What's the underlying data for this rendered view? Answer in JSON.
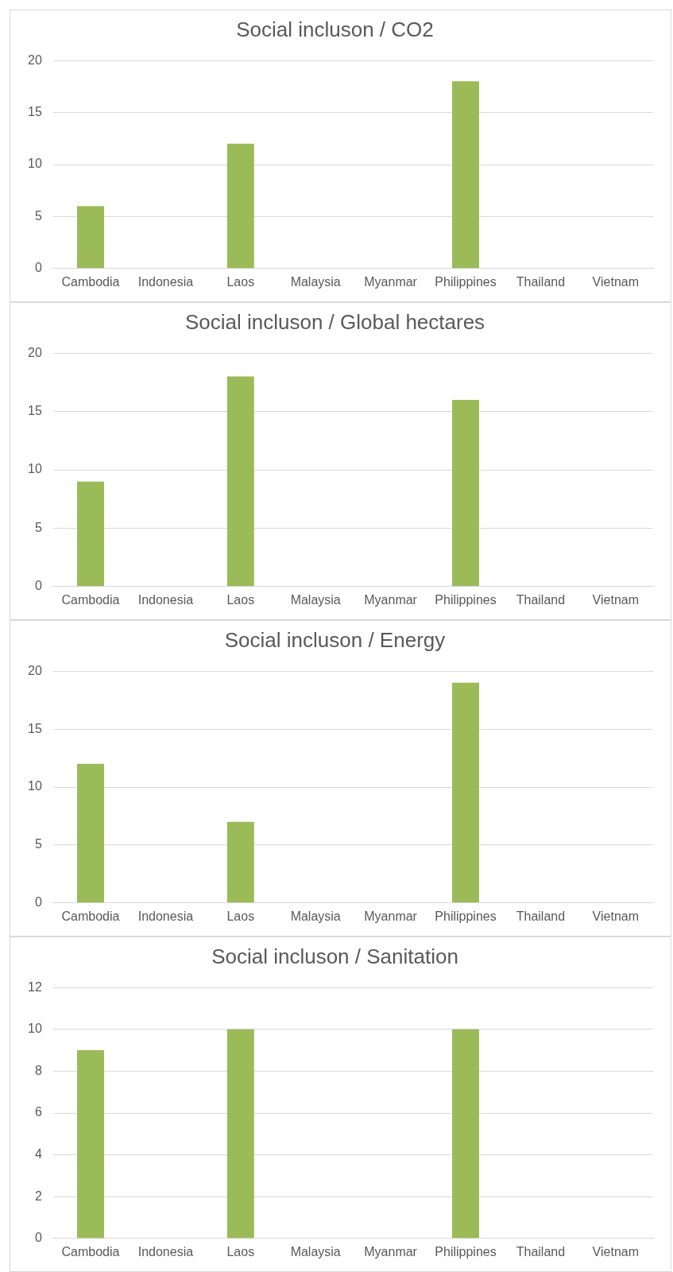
{
  "chart_data": [
    {
      "type": "bar",
      "title": "Social incluson / CO2",
      "categories": [
        "Cambodia",
        "Indonesia",
        "Laos",
        "Malaysia",
        "Myanmar",
        "Philippines",
        "Thailand",
        "Vietnam"
      ],
      "values": [
        6,
        null,
        12,
        null,
        null,
        18,
        null,
        null
      ],
      "color": "#9bbb59",
      "ylim": [
        0,
        20
      ],
      "yticks": [
        0,
        5,
        10,
        15,
        20
      ],
      "grid": "y",
      "legend": false
    },
    {
      "type": "bar",
      "title": "Social incluson / Global hectares",
      "categories": [
        "Cambodia",
        "Indonesia",
        "Laos",
        "Malaysia",
        "Myanmar",
        "Philippines",
        "Thailand",
        "Vietnam"
      ],
      "values": [
        9,
        null,
        18,
        null,
        null,
        16,
        null,
        null
      ],
      "color": "#9bbb59",
      "ylim": [
        0,
        20
      ],
      "yticks": [
        0,
        5,
        10,
        15,
        20
      ],
      "grid": "y",
      "legend": false
    },
    {
      "type": "bar",
      "title": "Social incluson / Energy",
      "categories": [
        "Cambodia",
        "Indonesia",
        "Laos",
        "Malaysia",
        "Myanmar",
        "Philippines",
        "Thailand",
        "Vietnam"
      ],
      "values": [
        12,
        null,
        7,
        null,
        null,
        19,
        null,
        null
      ],
      "color": "#9bbb59",
      "ylim": [
        0,
        20
      ],
      "yticks": [
        0,
        5,
        10,
        15,
        20
      ],
      "grid": "y",
      "legend": false
    },
    {
      "type": "bar",
      "title": "Social incluson / Sanitation",
      "categories": [
        "Cambodia",
        "Indonesia",
        "Laos",
        "Malaysia",
        "Myanmar",
        "Philippines",
        "Thailand",
        "Vietnam"
      ],
      "values": [
        9,
        null,
        10,
        null,
        null,
        10,
        null,
        null
      ],
      "color": "#9bbb59",
      "ylim": [
        0,
        12
      ],
      "yticks": [
        0,
        2,
        4,
        6,
        8,
        10,
        12
      ],
      "grid": "y",
      "legend": false
    }
  ]
}
